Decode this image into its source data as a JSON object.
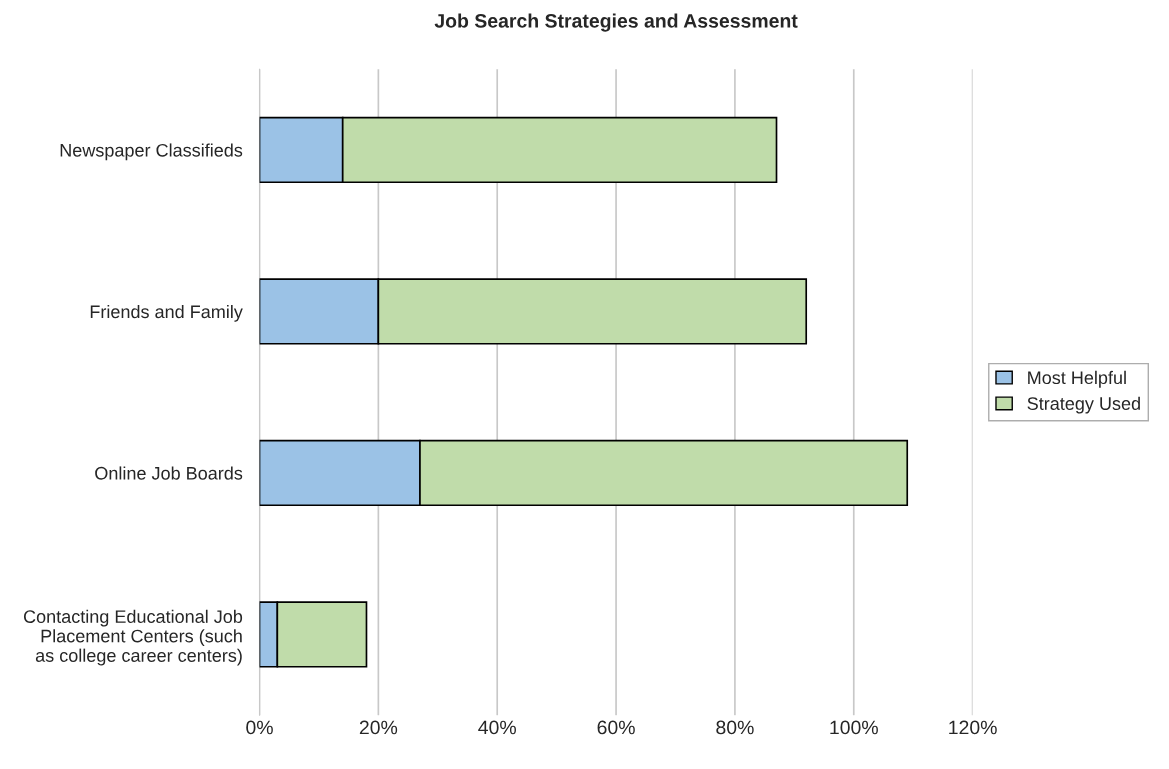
{
  "chart_data": {
    "type": "bar",
    "title": "Job Search Strategies and Assessment",
    "orientation": "horizontal",
    "stacked": true,
    "categories": [
      "Newspaper Classifieds",
      "Friends and Family",
      "Online Job Boards",
      "Contacting Educational Job\nPlacement Centers (such\nas college career centers)"
    ],
    "series": [
      {
        "name": "Most Helpful",
        "color": "#9bc2e6",
        "values": [
          14,
          20,
          27,
          3
        ]
      },
      {
        "name": "Strategy Used",
        "color": "#c0dcaa",
        "values": [
          73,
          72,
          82,
          15
        ]
      }
    ],
    "xlim": [
      0,
      120
    ],
    "xticks": [
      {
        "value": 0,
        "label": "0%"
      },
      {
        "value": 20,
        "label": "20%"
      },
      {
        "value": 40,
        "label": "40%"
      },
      {
        "value": 60,
        "label": "60%"
      },
      {
        "value": 80,
        "label": "80%"
      },
      {
        "value": 100,
        "label": "100%"
      },
      {
        "value": 120,
        "label": "120%"
      }
    ],
    "grid": "x",
    "legend": "right"
  }
}
